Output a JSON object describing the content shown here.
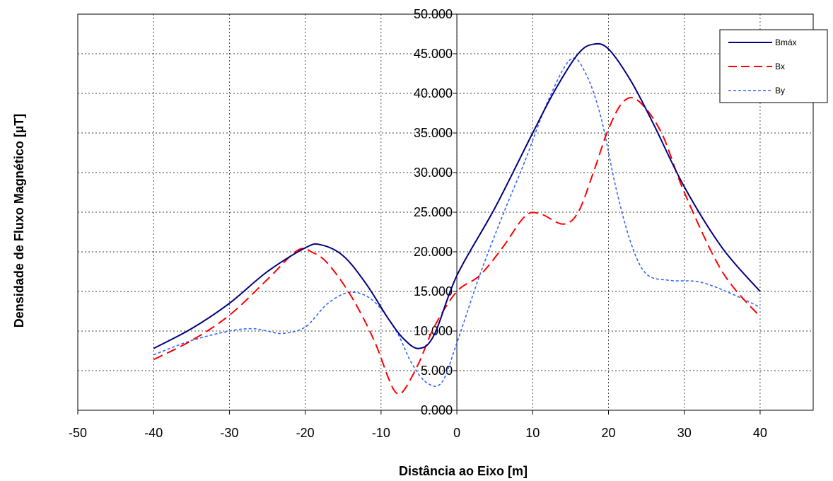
{
  "chart_data": {
    "type": "line",
    "xlabel": "Distância ao Eixo [m]",
    "ylabel": "Densidade de Fluxo Magnético [µT]",
    "xlim": [
      -50,
      47
    ],
    "ylim": [
      0,
      50
    ],
    "x_ticks": [
      -50,
      -40,
      -30,
      -20,
      -10,
      0,
      10,
      20,
      30,
      40
    ],
    "y_ticks": [
      "0.000",
      "5.000",
      "10.000",
      "15.000",
      "20.000",
      "25.000",
      "30.000",
      "35.000",
      "40.000",
      "45.000",
      "50.000"
    ],
    "grid": "dashed",
    "legend_position": "top-right",
    "series": [
      {
        "name": "Bmáx",
        "color": "#000080",
        "style": "solid",
        "points": [
          [
            -40,
            7.8
          ],
          [
            -35,
            10.3
          ],
          [
            -30,
            13.5
          ],
          [
            -25,
            17.5
          ],
          [
            -20,
            20.5
          ],
          [
            -18,
            20.9
          ],
          [
            -15,
            19.5
          ],
          [
            -12,
            16
          ],
          [
            -9,
            11.5
          ],
          [
            -7,
            9
          ],
          [
            -5,
            7.8
          ],
          [
            -3,
            9.5
          ],
          [
            0,
            17
          ],
          [
            5,
            25.5
          ],
          [
            10,
            35
          ],
          [
            13,
            40.5
          ],
          [
            16,
            45
          ],
          [
            18,
            46.2
          ],
          [
            20,
            45.6
          ],
          [
            23,
            41.5
          ],
          [
            26,
            36
          ],
          [
            30,
            28.2
          ],
          [
            35,
            20.5
          ],
          [
            40,
            15
          ]
        ]
      },
      {
        "name": "Bx",
        "color": "#ff0000",
        "style": "dashed",
        "points": [
          [
            -40,
            6.4
          ],
          [
            -35,
            8.8
          ],
          [
            -30,
            12
          ],
          [
            -25,
            16.5
          ],
          [
            -21,
            20.2
          ],
          [
            -19,
            19.9
          ],
          [
            -17,
            18.5
          ],
          [
            -14,
            14.5
          ],
          [
            -11,
            9
          ],
          [
            -9,
            4
          ],
          [
            -8,
            2.2
          ],
          [
            -7,
            2.5
          ],
          [
            -5,
            6
          ],
          [
            -3,
            10.5
          ],
          [
            0,
            15
          ],
          [
            3,
            17
          ],
          [
            6,
            20.5
          ],
          [
            9,
            24.5
          ],
          [
            11,
            24.8
          ],
          [
            14,
            23.5
          ],
          [
            16,
            25
          ],
          [
            18,
            30
          ],
          [
            20,
            35.5
          ],
          [
            22,
            39
          ],
          [
            24,
            39
          ],
          [
            27,
            35
          ],
          [
            30,
            27.5
          ],
          [
            35,
            17.5
          ],
          [
            40,
            11.8
          ]
        ]
      },
      {
        "name": "By",
        "color": "#3366ff",
        "style": "dotted",
        "points": [
          [
            -40,
            7
          ],
          [
            -35,
            8.8
          ],
          [
            -30,
            10
          ],
          [
            -27,
            10.3
          ],
          [
            -25,
            10
          ],
          [
            -23,
            9.7
          ],
          [
            -20,
            10.5
          ],
          [
            -17,
            13.5
          ],
          [
            -14,
            14.9
          ],
          [
            -11,
            13.8
          ],
          [
            -8,
            10
          ],
          [
            -6,
            6
          ],
          [
            -4,
            3.5
          ],
          [
            -2,
            3.5
          ],
          [
            0,
            8.5
          ],
          [
            3,
            17
          ],
          [
            6,
            24.5
          ],
          [
            9,
            31.5
          ],
          [
            12,
            39
          ],
          [
            15,
            44.3
          ],
          [
            17,
            42.5
          ],
          [
            19,
            37
          ],
          [
            21,
            28
          ],
          [
            23,
            21
          ],
          [
            25,
            17.2
          ],
          [
            28,
            16.4
          ],
          [
            32,
            16.2
          ],
          [
            36,
            14.8
          ],
          [
            40,
            13
          ]
        ]
      }
    ]
  }
}
